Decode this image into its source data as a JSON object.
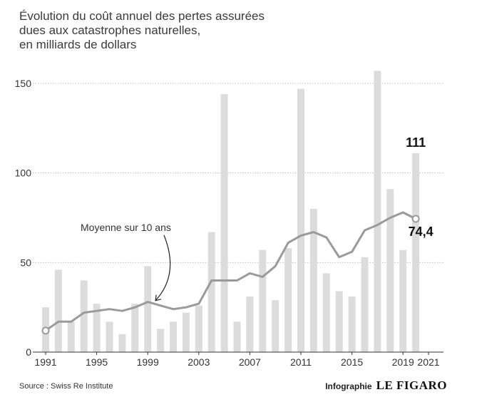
{
  "header": {
    "title_lines": [
      "Évolution du coût annuel des pertes assurées",
      "dues aux catastrophes naturelles,",
      "en milliards de dollars"
    ]
  },
  "footer": {
    "source": "Source : Swiss Re Institute",
    "credit_label": "Infographie",
    "credit_brand": "LE FIGARO"
  },
  "colors": {
    "bar": "#dcdcdc",
    "line": "#9a9a9a",
    "grid": "#bdbdbd",
    "text": "#333333"
  },
  "chart_data": {
    "type": "bar",
    "title": "Évolution du coût annuel des pertes assurées dues aux catastrophes naturelles, en milliards de dollars",
    "xlabel": "",
    "ylabel": "",
    "ylim": [
      0,
      150
    ],
    "grid": true,
    "years": [
      1991,
      1992,
      1993,
      1994,
      1995,
      1996,
      1997,
      1998,
      1999,
      2000,
      2001,
      2002,
      2003,
      2004,
      2005,
      2006,
      2007,
      2008,
      2009,
      2010,
      2011,
      2012,
      2013,
      2014,
      2015,
      2016,
      2017,
      2018,
      2019,
      2020
    ],
    "x_tick_labels": [
      "1991",
      "1995",
      "1999",
      "2003",
      "2007",
      "2011",
      "2015",
      "2019",
      "2021"
    ],
    "y_tick_labels": [
      "0",
      "50",
      "100",
      "150"
    ],
    "series": [
      {
        "type": "bar",
        "values": [
          25,
          46,
          17,
          40,
          27,
          17,
          10,
          27,
          48,
          13,
          17,
          22,
          26,
          67,
          144,
          17,
          31,
          57,
          29,
          58,
          147,
          80,
          44,
          34,
          31,
          53,
          157,
          91,
          57,
          111
        ]
      },
      {
        "name": "Moyenne sur 10 ans",
        "type": "line",
        "values": [
          12,
          17,
          17,
          22,
          23,
          24,
          23,
          25,
          28,
          26,
          24,
          25,
          27,
          40,
          40,
          40,
          44,
          42,
          48,
          61,
          65,
          67,
          64,
          53,
          56,
          68,
          71,
          75,
          78,
          74.4
        ]
      }
    ],
    "annotations": {
      "average_label": "Moyenne sur 10 ans",
      "last_bar_label": "111",
      "last_average_label": "74,4"
    }
  }
}
